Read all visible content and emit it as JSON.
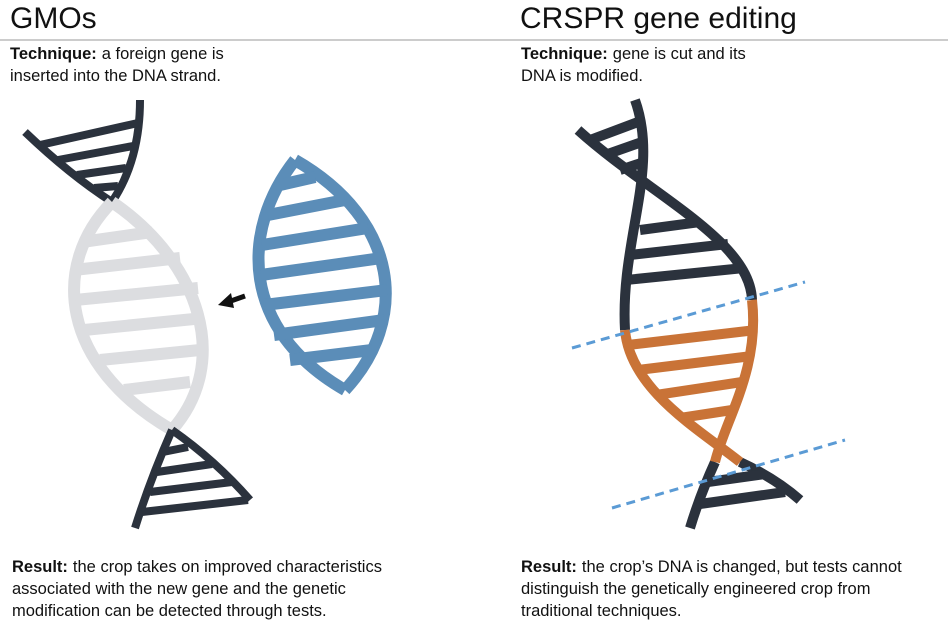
{
  "panels": [
    {
      "title": "GMOs",
      "technique": {
        "label": "Technique:",
        "text": "a foreign gene is inserted into the DNA strand."
      },
      "result": {
        "label": "Result:",
        "text": "the crop takes on improved characteristics associated with the new gene and the genetic modification can be detected through tests."
      }
    },
    {
      "title": "CRSPR gene editing",
      "technique": {
        "label": "Technique:",
        "text": "gene is cut and its DNA is modified."
      },
      "result": {
        "label": "Result:",
        "text": "the crop’s DNA is changed, but tests cannot distinguish the genetically engineered crop from traditional techniques."
      }
    }
  ]
}
